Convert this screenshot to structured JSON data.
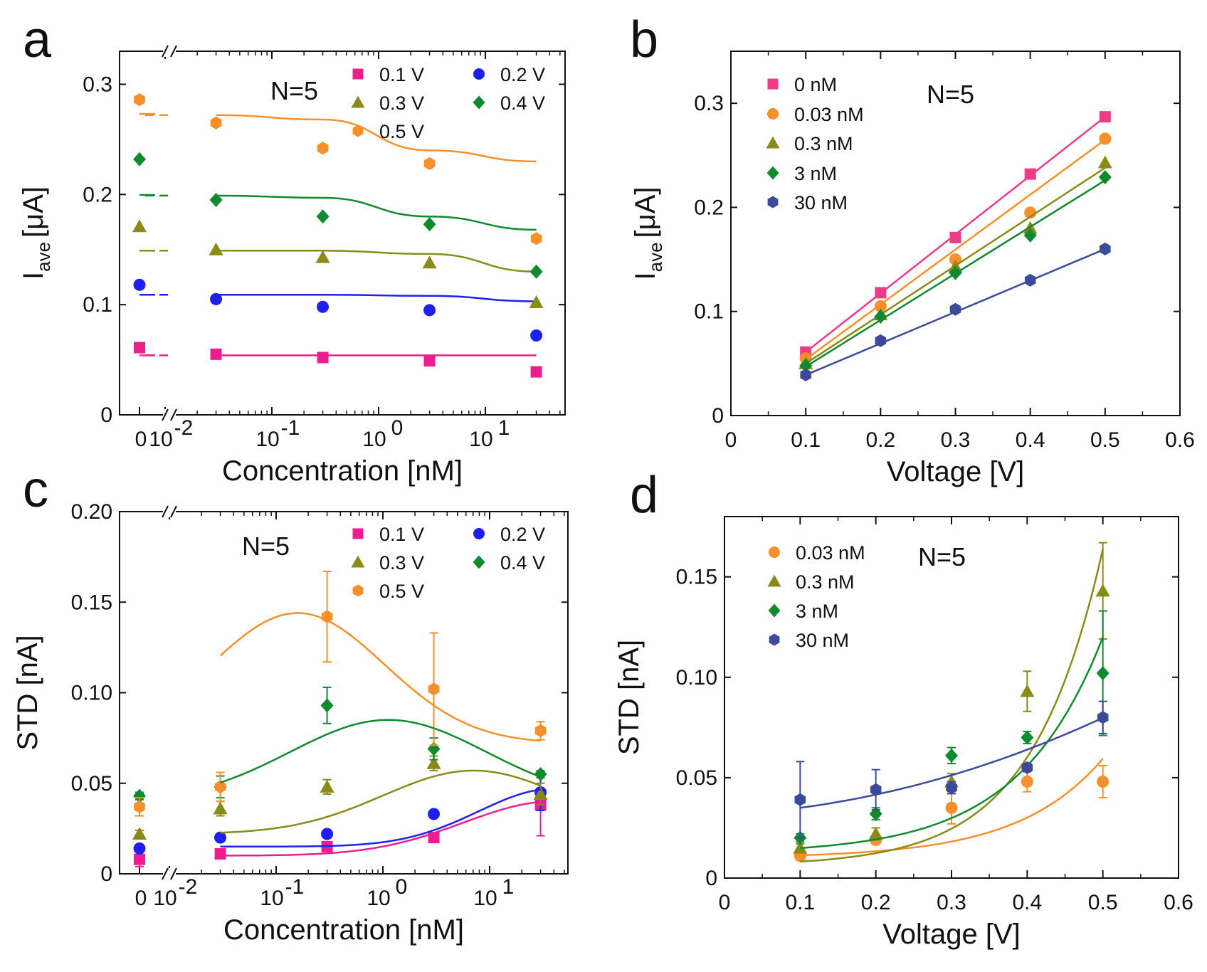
{
  "colors": {
    "0.1 V": "#ec1e8f",
    "0.2 V": "#1f1ff2",
    "0.3 V": "#8a8a18",
    "0.4 V": "#0f8a2e",
    "0.5 V": "#f7902a",
    "0 nM": "#ee3b87",
    "0.03 nM": "#f7902a",
    "0.3 nM": "#8a8a18",
    "3 nM": "#0f8a2e",
    "30 nM": "#3d4a9a"
  },
  "chart_data": [
    {
      "panel": "a",
      "type": "scatter",
      "xlabel": "Concentration [nM]",
      "ylabel": "I",
      "ylabel_sub": "ave",
      "ylabel_unit": "[μA]",
      "xscale": "log",
      "x_break_label": "0",
      "x_tick_labels": [
        "10",
        "10",
        "10",
        "10"
      ],
      "x_tick_exponents": [
        "-2",
        "-1",
        "0",
        "1"
      ],
      "y_tick_labels": [
        "0",
        "0.1",
        "0.2",
        "0.3"
      ],
      "ylim": [
        0,
        0.33
      ],
      "annotation": "N=5",
      "x": [
        0,
        0.03,
        0.3,
        3,
        30
      ],
      "series": [
        {
          "name": "0.1 V",
          "marker": "square",
          "values": [
            0.061,
            0.055,
            0.052,
            0.049,
            0.039
          ],
          "fit": [
            0.054,
            0.054,
            0.054,
            0.054
          ]
        },
        {
          "name": "0.2 V",
          "marker": "circle",
          "values": [
            0.118,
            0.105,
            0.098,
            0.095,
            0.072
          ],
          "fit": [
            0.109,
            0.109,
            0.108,
            0.103
          ]
        },
        {
          "name": "0.3 V",
          "marker": "triangle",
          "values": [
            0.171,
            0.15,
            0.143,
            0.138,
            0.102
          ],
          "fit": [
            0.149,
            0.149,
            0.146,
            0.13
          ]
        },
        {
          "name": "0.4 V",
          "marker": "diamond",
          "values": [
            0.232,
            0.195,
            0.18,
            0.173,
            0.13
          ],
          "fit": [
            0.199,
            0.197,
            0.18,
            0.168
          ]
        },
        {
          "name": "0.5 V",
          "marker": "hexagon",
          "values": [
            0.286,
            0.265,
            0.242,
            0.228,
            0.16
          ],
          "fit": [
            0.272,
            0.268,
            0.24,
            0.23
          ]
        }
      ]
    },
    {
      "panel": "b",
      "type": "scatter",
      "xlabel": "Voltage [V]",
      "ylabel": "I",
      "ylabel_sub": "ave",
      "ylabel_unit": "[μA]",
      "x_tick_labels": [
        "0",
        "0.1",
        "0.2",
        "0.3",
        "0.4",
        "0.5",
        "0.6"
      ],
      "y_tick_labels": [
        "0",
        "0.1",
        "0.2",
        "0.3"
      ],
      "xlim": [
        0,
        0.6
      ],
      "ylim": [
        0,
        0.35
      ],
      "annotation": "N=5",
      "x": [
        0.1,
        0.2,
        0.3,
        0.4,
        0.5
      ],
      "series": [
        {
          "name": "0 nM",
          "marker": "square",
          "values": [
            0.061,
            0.118,
            0.171,
            0.232,
            0.287
          ],
          "fit": [
            0.061,
            0.287
          ]
        },
        {
          "name": "0.03 nM",
          "marker": "circle",
          "values": [
            0.055,
            0.105,
            0.15,
            0.195,
            0.266
          ],
          "fit": [
            0.054,
            0.265
          ]
        },
        {
          "name": "0.3 nM",
          "marker": "triangle",
          "values": [
            0.05,
            0.097,
            0.143,
            0.18,
            0.243
          ],
          "fit": [
            0.05,
            0.238
          ]
        },
        {
          "name": "3 nM",
          "marker": "diamond",
          "values": [
            0.048,
            0.095,
            0.137,
            0.173,
            0.229
          ],
          "fit": [
            0.047,
            0.226
          ]
        },
        {
          "name": "30 nM",
          "marker": "hexagon",
          "values": [
            0.039,
            0.072,
            0.102,
            0.13,
            0.16
          ],
          "fit": [
            0.039,
            0.16
          ]
        }
      ]
    },
    {
      "panel": "c",
      "type": "scatter",
      "xlabel": "Concentration [nM]",
      "ylabel": "STD [nA]",
      "xscale": "log",
      "x_break_label": "0",
      "x_tick_labels": [
        "10",
        "10",
        "10",
        "10"
      ],
      "x_tick_exponents": [
        "-2",
        "-1",
        "0",
        "1"
      ],
      "y_tick_labels": [
        "0",
        "0.05",
        "0.10",
        "0.15",
        "0.20"
      ],
      "ylim": [
        0,
        0.2
      ],
      "annotation": "N=5",
      "x": [
        0,
        0.03,
        0.3,
        3,
        30
      ],
      "series": [
        {
          "name": "0.1 V",
          "marker": "square",
          "values": [
            0.008,
            0.011,
            0.015,
            0.02,
            0.038
          ],
          "err": [
            0.004,
            0.002,
            0.002,
            0.002,
            0.017
          ]
        },
        {
          "name": "0.2 V",
          "marker": "circle",
          "values": [
            0.014,
            0.02,
            0.022,
            0.033,
            0.045
          ],
          "err": [
            0.002,
            0.002,
            0.002,
            0.002,
            0.01
          ]
        },
        {
          "name": "0.3 V",
          "marker": "triangle",
          "values": [
            0.022,
            0.036,
            0.048,
            0.061,
            0.044
          ],
          "err": [
            0.002,
            0.004,
            0.004,
            0.004,
            0.006
          ]
        },
        {
          "name": "0.4 V",
          "marker": "diamond",
          "values": [
            0.043,
            0.048,
            0.093,
            0.069,
            0.055
          ],
          "err": [
            0.002,
            0.006,
            0.01,
            0.006,
            0.002
          ]
        },
        {
          "name": "0.5 V",
          "marker": "hexagon",
          "values": [
            0.037,
            0.048,
            0.142,
            0.102,
            0.079
          ],
          "err": [
            0.005,
            0.008,
            0.025,
            0.031,
            0.005
          ]
        }
      ]
    },
    {
      "panel": "d",
      "type": "scatter",
      "xlabel": "Voltage [V]",
      "ylabel": "STD [nA]",
      "x_tick_labels": [
        "0",
        "0.1",
        "0.2",
        "0.3",
        "0.4",
        "0.5",
        "0.6"
      ],
      "y_tick_labels": [
        "0",
        "0.05",
        "0.10",
        "0.15"
      ],
      "xlim": [
        0,
        0.6
      ],
      "ylim": [
        0,
        0.18
      ],
      "annotation": "N=5",
      "x": [
        0.1,
        0.2,
        0.3,
        0.4,
        0.5
      ],
      "series": [
        {
          "name": "0.03 nM",
          "marker": "circle",
          "values": [
            0.011,
            0.019,
            0.035,
            0.048,
            0.048
          ],
          "err": [
            0.002,
            0.002,
            0.008,
            0.005,
            0.008
          ]
        },
        {
          "name": "0.3 nM",
          "marker": "triangle",
          "values": [
            0.015,
            0.022,
            0.048,
            0.093,
            0.143
          ],
          "err": [
            0.002,
            0.003,
            0.004,
            0.01,
            0.024
          ]
        },
        {
          "name": "3 nM",
          "marker": "diamond",
          "values": [
            0.02,
            0.032,
            0.061,
            0.07,
            0.102
          ],
          "err": [
            0.002,
            0.003,
            0.004,
            0.003,
            0.031
          ]
        },
        {
          "name": "30 nM",
          "marker": "hexagon",
          "values": [
            0.039,
            0.044,
            0.045,
            0.055,
            0.08
          ],
          "err": [
            0.019,
            0.01,
            0.003,
            0.002,
            0.008
          ]
        }
      ]
    }
  ],
  "panels": {
    "a": "a",
    "b": "b",
    "c": "c",
    "d": "d"
  }
}
